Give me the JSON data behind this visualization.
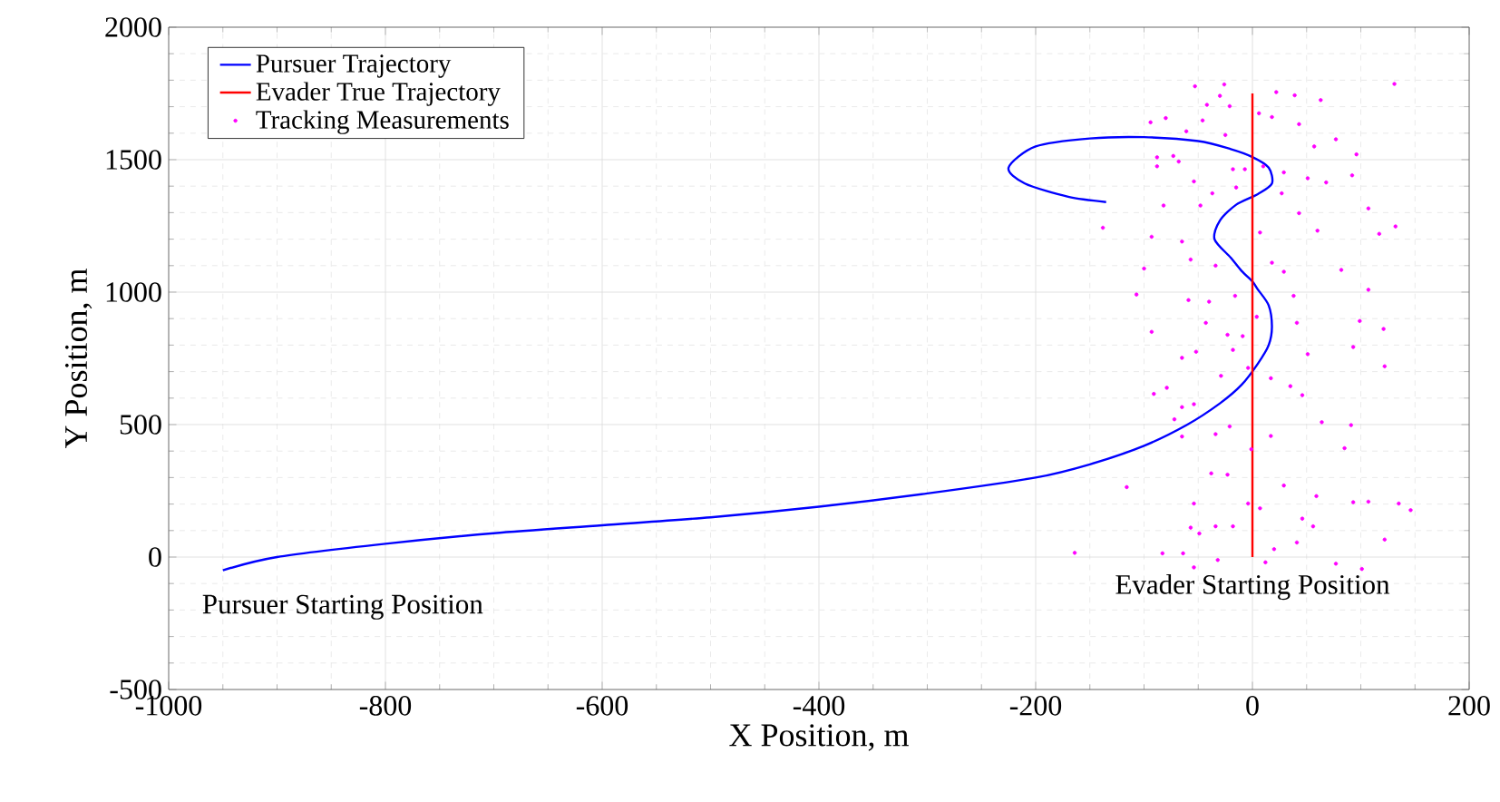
{
  "chart_data": {
    "type": "line",
    "xlabel": "X Position, m",
    "ylabel": "Y Position, m",
    "xlim": [
      -1000,
      200
    ],
    "ylim": [
      -500,
      2000
    ],
    "xticks": [
      -1000,
      -800,
      -600,
      -400,
      -200,
      0,
      200
    ],
    "yticks": [
      -500,
      0,
      500,
      1000,
      1500,
      2000
    ],
    "grid": true,
    "legend": "top left",
    "line_style": "solid",
    "annotations": [
      {
        "text": "Pursuer Starting Position",
        "x": -950,
        "y": -50
      },
      {
        "text": "Evader Starting Position",
        "x": 0,
        "y": 0
      }
    ],
    "series": [
      {
        "name": "Pursuer Trajectory",
        "color": "#0000ff",
        "marker": "none",
        "x": [
          -950,
          -900,
          -800,
          -700,
          -600,
          -500,
          -400,
          -300,
          -200,
          -150,
          -100,
          -60,
          -30,
          -10,
          5,
          15,
          18,
          15,
          5,
          0,
          -10,
          -20,
          -35,
          -30,
          -15,
          5,
          18,
          15,
          0,
          -20,
          -50,
          -100,
          -150,
          -200,
          -225,
          -210,
          -170,
          -135
        ],
        "values": [
          -50,
          0,
          50,
          90,
          120,
          150,
          190,
          240,
          300,
          350,
          420,
          500,
          580,
          650,
          730,
          800,
          870,
          950,
          1010,
          1040,
          1080,
          1130,
          1200,
          1270,
          1330,
          1370,
          1410,
          1470,
          1510,
          1540,
          1570,
          1585,
          1580,
          1550,
          1470,
          1410,
          1360,
          1340
        ]
      },
      {
        "name": "Evader True Trajectory",
        "color": "#ff0000",
        "marker": "none",
        "x": [
          0,
          0
        ],
        "values": [
          0,
          1750
        ]
      },
      {
        "name": "Tracking Measurements",
        "color": "#ff00ff",
        "type": "scatter",
        "marker": "circle",
        "x": [
          -53,
          -26,
          131,
          -30,
          -42,
          -21,
          22,
          39,
          63,
          -80,
          -94,
          -46,
          6,
          18,
          43,
          -61,
          -25,
          77,
          57,
          96,
          -88,
          -73,
          -88,
          -68,
          -18,
          -7,
          10,
          29,
          -54,
          51,
          68,
          92,
          -37,
          -15,
          27,
          -82,
          -48,
          43,
          107,
          -138,
          -93,
          -65,
          7,
          60,
          117,
          132,
          -100,
          -57,
          -34,
          18,
          29,
          82,
          -107,
          -59,
          -40,
          -16,
          38,
          107,
          -43,
          41,
          99,
          121,
          -93,
          -23,
          -9,
          -65,
          -52,
          -18,
          51,
          93,
          122,
          -29,
          -91,
          -79,
          17,
          35,
          -54,
          -65,
          46,
          -72,
          64,
          91,
          -65,
          -34,
          17,
          85,
          -38,
          -116,
          -23,
          29,
          59,
          93,
          107,
          135,
          146,
          -54,
          -57,
          -34,
          -18,
          7,
          46,
          56,
          -49,
          41,
          122,
          -164,
          -83,
          -64,
          -32,
          12,
          -54,
          77,
          101,
          20,
          -4,
          -21,
          -1,
          4,
          -4
        ],
        "values": [
          1777,
          1784,
          1786,
          1741,
          1707,
          1702,
          1755,
          1743,
          1725,
          1657,
          1641,
          1648,
          1675,
          1661,
          1634,
          1607,
          1593,
          1577,
          1550,
          1520,
          1509,
          1514,
          1475,
          1493,
          1464,
          1464,
          1475,
          1452,
          1418,
          1430,
          1414,
          1441,
          1373,
          1395,
          1373,
          1327,
          1327,
          1298,
          1316,
          1243,
          1209,
          1191,
          1225,
          1232,
          1220,
          1248,
          1089,
          1123,
          1100,
          1111,
          1077,
          1084,
          991,
          970,
          964,
          986,
          986,
          1009,
          884,
          884,
          891,
          861,
          850,
          839,
          834,
          752,
          775,
          782,
          766,
          793,
          720,
          684,
          616,
          639,
          675,
          645,
          577,
          566,
          611,
          520,
          509,
          498,
          455,
          464,
          457,
          411,
          316,
          264,
          311,
          270,
          230,
          207,
          209,
          202,
          177,
          202,
          111,
          116,
          116,
          184,
          145,
          116,
          89,
          55,
          66,
          16,
          14,
          14,
          -11,
          -20,
          -39,
          -25,
          -45,
          30,
          202,
          493,
          407,
          907,
          714
        ]
      }
    ]
  }
}
